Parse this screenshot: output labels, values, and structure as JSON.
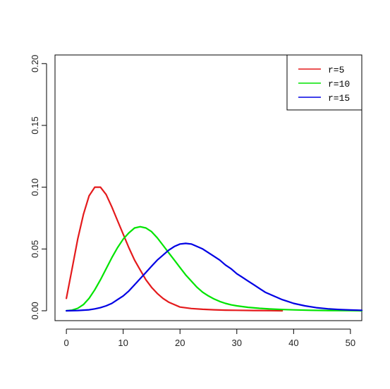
{
  "chart_data": {
    "type": "line",
    "title": "",
    "xlabel": "",
    "ylabel": "",
    "xlim": [
      -2,
      52
    ],
    "ylim": [
      -0.008,
      0.207
    ],
    "grid": false,
    "legend_position": "top-right",
    "x_ticks": [
      0,
      10,
      20,
      30,
      40,
      50
    ],
    "x_tick_labels": [
      "0",
      "10",
      "20",
      "30",
      "40",
      "50"
    ],
    "y_ticks": [
      0.0,
      0.05,
      0.1,
      0.15,
      0.2
    ],
    "y_tick_labels": [
      "0.00",
      "0.05",
      "0.10",
      "0.15",
      "0.20"
    ],
    "series": [
      {
        "name": "r=5",
        "color": "#e41a1c",
        "x": [
          0,
          1,
          2,
          3,
          4,
          5,
          6,
          7,
          8,
          9,
          10,
          11,
          12,
          13,
          14,
          15,
          16,
          17,
          18,
          19,
          20,
          22,
          24,
          26,
          28,
          30,
          33,
          36,
          38
        ],
        "y": [
          0.01,
          0.034,
          0.058,
          0.078,
          0.093,
          0.1,
          0.1,
          0.094,
          0.084,
          0.073,
          0.062,
          0.051,
          0.041,
          0.033,
          0.025,
          0.019,
          0.014,
          0.01,
          0.007,
          0.005,
          0.003,
          0.0018,
          0.0012,
          0.0008,
          0.0005,
          0.0004,
          0.0002,
          0.0001,
          0.0
        ]
      },
      {
        "name": "r=10",
        "color": "#00e400",
        "x": [
          0,
          1,
          2,
          3,
          4,
          5,
          6,
          7,
          8,
          9,
          10,
          11,
          12,
          13,
          14,
          15,
          16,
          17,
          18,
          19,
          20,
          21,
          22,
          23,
          24,
          25,
          26,
          27,
          28,
          29,
          30,
          32,
          34,
          36,
          38,
          40,
          43,
          46,
          50,
          52
        ],
        "y": [
          0.0,
          0.0005,
          0.002,
          0.005,
          0.01,
          0.017,
          0.025,
          0.034,
          0.043,
          0.051,
          0.058,
          0.063,
          0.067,
          0.068,
          0.067,
          0.064,
          0.059,
          0.053,
          0.047,
          0.041,
          0.035,
          0.029,
          0.024,
          0.019,
          0.015,
          0.012,
          0.0095,
          0.0075,
          0.006,
          0.0048,
          0.004,
          0.0028,
          0.002,
          0.0014,
          0.001,
          0.0007,
          0.0004,
          0.0002,
          0.0001,
          0.0
        ]
      },
      {
        "name": "r=15",
        "color": "#0000e4",
        "x": [
          0,
          2,
          4,
          5,
          6,
          7,
          8,
          9,
          10,
          11,
          12,
          13,
          14,
          15,
          16,
          17,
          18,
          19,
          20,
          21,
          22,
          23,
          24,
          25,
          26,
          27,
          28,
          29,
          30,
          31,
          32,
          33,
          34,
          35,
          36,
          37,
          38,
          39,
          40,
          42,
          44,
          46,
          48,
          50,
          52
        ],
        "y": [
          0.0,
          0.0002,
          0.0008,
          0.0015,
          0.0025,
          0.004,
          0.006,
          0.009,
          0.012,
          0.016,
          0.021,
          0.026,
          0.031,
          0.036,
          0.041,
          0.045,
          0.049,
          0.052,
          0.054,
          0.0545,
          0.054,
          0.052,
          0.05,
          0.047,
          0.044,
          0.041,
          0.037,
          0.034,
          0.03,
          0.027,
          0.024,
          0.021,
          0.018,
          0.015,
          0.013,
          0.011,
          0.009,
          0.0075,
          0.006,
          0.004,
          0.0025,
          0.0016,
          0.001,
          0.0006,
          0.0004
        ]
      }
    ]
  }
}
